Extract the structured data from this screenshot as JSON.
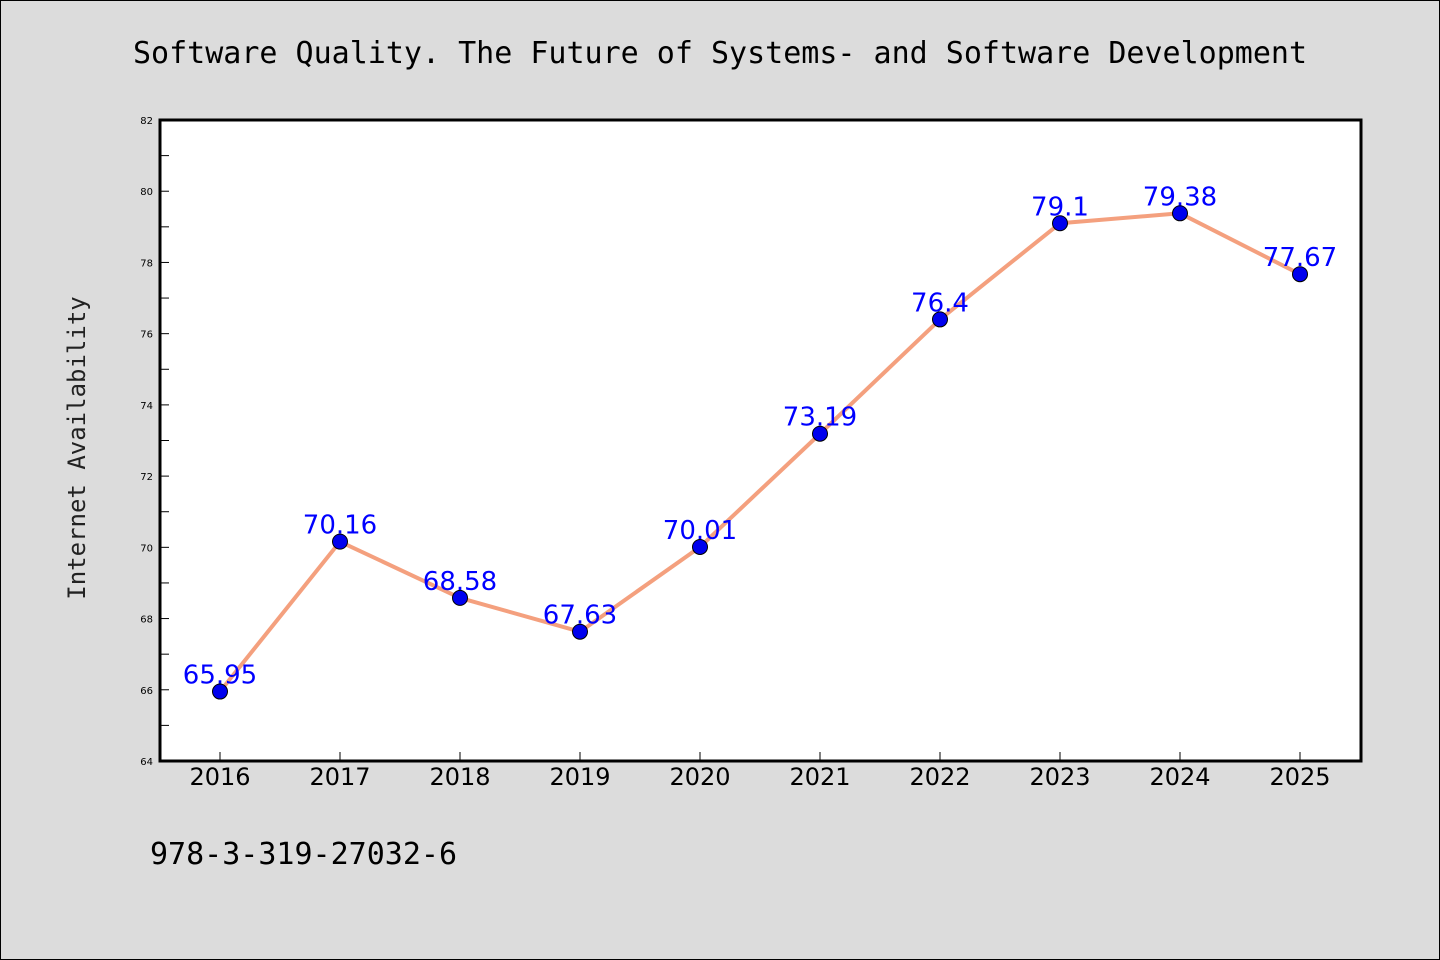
{
  "chart_data": {
    "type": "line",
    "title": "Software Quality. The Future of Systems- and Software Development",
    "xlabel": "",
    "ylabel": "Internet Availability",
    "categories": [
      "2016",
      "2017",
      "2018",
      "2019",
      "2020",
      "2021",
      "2022",
      "2023",
      "2024",
      "2025"
    ],
    "series": [
      {
        "values": [
          65.95,
          70.16,
          68.58,
          67.63,
          70.01,
          73.19,
          76.4,
          79.1,
          79.38,
          77.67
        ],
        "data_labels": [
          "65.95",
          "70.16",
          "68.58",
          "67.63",
          "70.01",
          "73.19",
          "76.4",
          "79.1",
          "79.38",
          "77.67"
        ],
        "line_color": "#f4a07e",
        "marker_color": "#0000ee"
      }
    ],
    "ylim": [
      64,
      82
    ],
    "yticks": [
      "64",
      "66",
      "68",
      "70",
      "72",
      "74",
      "76",
      "78",
      "80",
      "82"
    ],
    "grid": false,
    "legend": "none"
  },
  "footer": {
    "text": "978-3-319-27032-6"
  },
  "colors": {
    "background": "#dcdcdc",
    "plot_background": "#ffffff",
    "label_color": "#0000ff"
  }
}
